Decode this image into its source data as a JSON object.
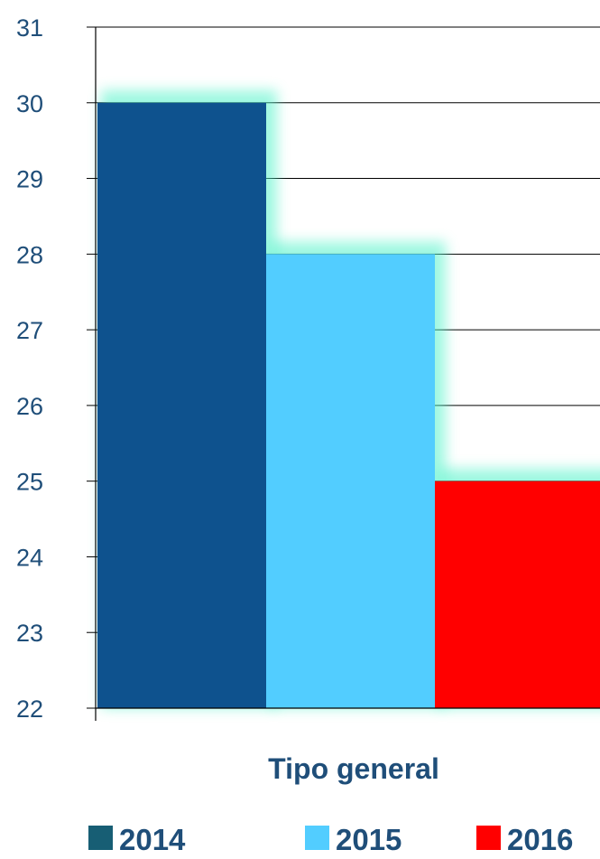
{
  "chart_data": {
    "type": "bar",
    "categories": [
      "Tipo general"
    ],
    "series": [
      {
        "name": "2014",
        "values": [
          30
        ],
        "color": "#0e528e"
      },
      {
        "name": "2015",
        "values": [
          28
        ],
        "color": "#52cdff"
      },
      {
        "name": "2016",
        "values": [
          25
        ],
        "color": "#ff0000"
      }
    ],
    "ylim": [
      22,
      31
    ],
    "yticks": [
      "22",
      "23",
      "24",
      "25",
      "26",
      "27",
      "28",
      "29",
      "30",
      "31"
    ],
    "grid": true,
    "legend_position": "bottom",
    "colors": {
      "text": "#1f4e79",
      "grid": "#000000",
      "glow": "#4ff2c8",
      "legend_swatch_2014": "#175e74"
    }
  }
}
